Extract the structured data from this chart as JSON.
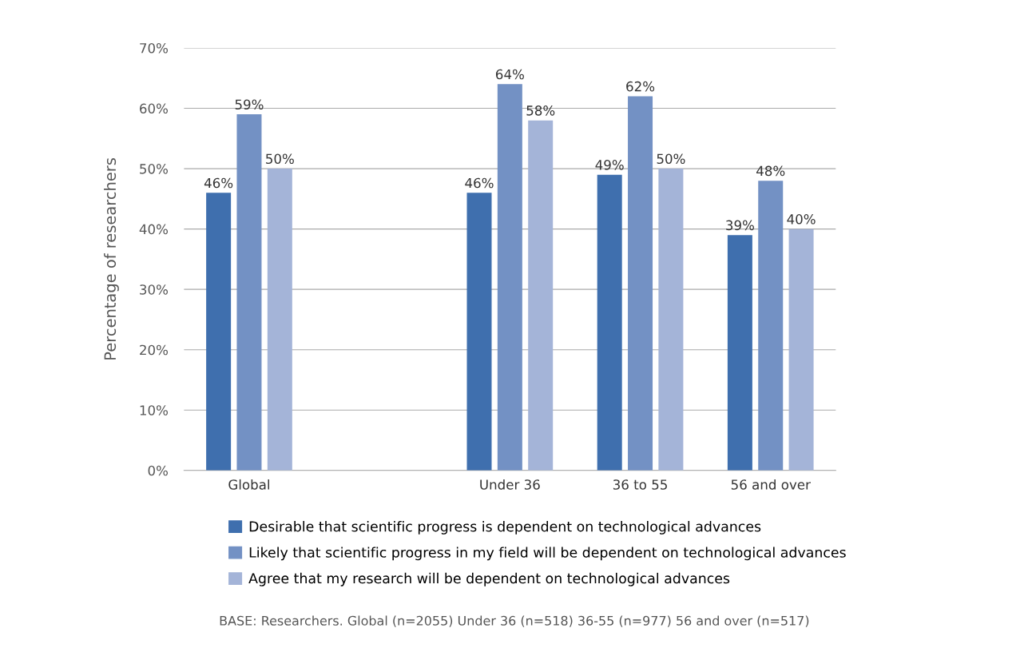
{
  "chart_data": {
    "type": "bar",
    "ylabel": "Percentage of researchers",
    "categories": [
      "Global",
      null,
      "Under 36",
      "36 to 55",
      "56 and over"
    ],
    "series": [
      {
        "name": "Desirable that scientific progress is dependent on technological advances",
        "color": "#3f6fae",
        "values": [
          46,
          null,
          46,
          49,
          39
        ],
        "value_labels": [
          "46%",
          null,
          "46%",
          "49%",
          "39%"
        ]
      },
      {
        "name": "Likely that scientific progress in my field will be dependent on technological advances",
        "color": "#7391c4",
        "values": [
          59,
          null,
          64,
          62,
          48
        ],
        "value_labels": [
          "59%",
          null,
          "64%",
          "62%",
          "48%"
        ]
      },
      {
        "name": "Agree that my research will be dependent on technological advances",
        "color": "#a4b4d8",
        "values": [
          50,
          null,
          58,
          50,
          40
        ],
        "value_labels": [
          "50%",
          null,
          "58%",
          "50%",
          "40%"
        ]
      }
    ],
    "ylim": [
      0,
      70
    ],
    "yticks": [
      {
        "value": 0,
        "label": "0%"
      },
      {
        "value": 10,
        "label": "10%"
      },
      {
        "value": 20,
        "label": "20%"
      },
      {
        "value": 30,
        "label": "30%"
      },
      {
        "value": 40,
        "label": "40%"
      },
      {
        "value": 50,
        "label": "50%"
      },
      {
        "value": 60,
        "label": "60%"
      },
      {
        "value": 70,
        "label": "70%"
      }
    ],
    "grid": "y",
    "legend": "bottom",
    "annotations": [
      "BASE: Researchers. Global (n=2055) Under 36 (n=518) 36-55 (n=977) 56 and over (n=517)"
    ]
  }
}
